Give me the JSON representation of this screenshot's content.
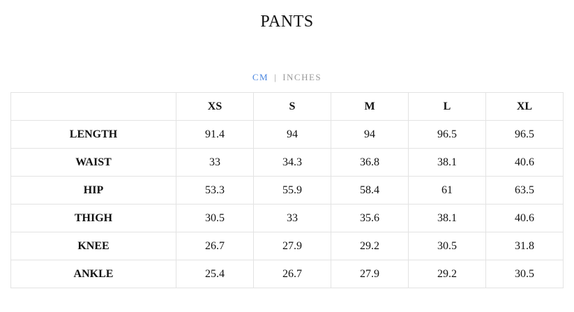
{
  "title": "PANTS",
  "units": {
    "cm": "CM",
    "separator": "|",
    "inches": "INCHES",
    "active": "CM",
    "active_color": "#4a86e0"
  },
  "table": {
    "headers": [
      "",
      "XS",
      "S",
      "M",
      "L",
      "XL"
    ],
    "rows": [
      {
        "label": "LENGTH",
        "values": [
          "91.4",
          "94",
          "94",
          "96.5",
          "96.5"
        ]
      },
      {
        "label": "WAIST",
        "values": [
          "33",
          "34.3",
          "36.8",
          "38.1",
          "40.6"
        ]
      },
      {
        "label": "HIP",
        "values": [
          "53.3",
          "55.9",
          "58.4",
          "61",
          "63.5"
        ]
      },
      {
        "label": "THIGH",
        "values": [
          "30.5",
          "33",
          "35.6",
          "38.1",
          "40.6"
        ]
      },
      {
        "label": "KNEE",
        "values": [
          "26.7",
          "27.9",
          "29.2",
          "30.5",
          "31.8"
        ]
      },
      {
        "label": "ANKLE",
        "values": [
          "25.4",
          "26.7",
          "27.9",
          "29.2",
          "30.5"
        ]
      }
    ]
  }
}
